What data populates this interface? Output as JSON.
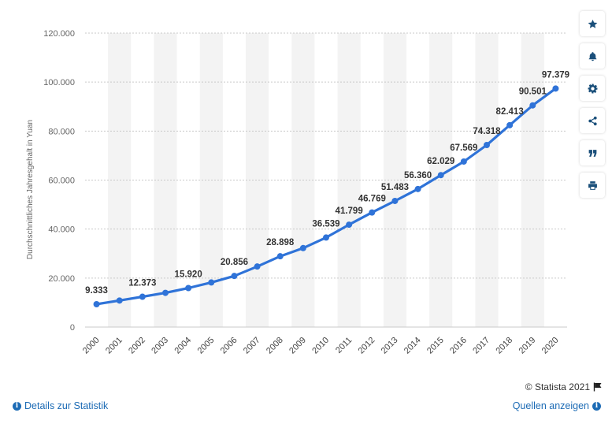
{
  "chart_data": {
    "type": "line",
    "categories": [
      "2000",
      "2001",
      "2002",
      "2003",
      "2004",
      "2005",
      "2006",
      "2007",
      "2008",
      "2009",
      "2010",
      "2011",
      "2012",
      "2013",
      "2014",
      "2015",
      "2016",
      "2017",
      "2018",
      "2019",
      "2020"
    ],
    "values": [
      9333,
      10834,
      12373,
      13969,
      15920,
      18200,
      20856,
      24721,
      28898,
      32244,
      36539,
      41799,
      46769,
      51483,
      56360,
      62029,
      67569,
      74318,
      82413,
      90501,
      97379
    ],
    "data_labels": [
      "9.333",
      "",
      "12.373",
      "",
      "15.920",
      "",
      "20.856",
      "",
      "28.898",
      "",
      "36.539",
      "41.799",
      "46.769",
      "51.483",
      "56.360",
      "62.029",
      "67.569",
      "74.318",
      "82.413",
      "90.501",
      "97.379"
    ],
    "title": "",
    "xlabel": "",
    "ylabel": "Durchschnittliches Jahresgehalt in Yuan",
    "ylim": [
      0,
      120000
    ],
    "yticks": [
      0,
      20000,
      40000,
      60000,
      80000,
      100000,
      120000
    ],
    "ytick_labels": [
      "0",
      "20.000",
      "40.000",
      "60.000",
      "80.000",
      "100.000",
      "120.000"
    ],
    "grid": true,
    "line_color": "#2f73d8",
    "band_color": "#f3f3f3"
  },
  "toolbar": {
    "items": [
      {
        "icon": "star-icon"
      },
      {
        "icon": "bell-icon"
      },
      {
        "icon": "gear-icon"
      },
      {
        "icon": "share-icon"
      },
      {
        "icon": "quote-icon"
      },
      {
        "icon": "print-icon"
      }
    ],
    "icon_color": "#1a4f7a"
  },
  "footer": {
    "copyright": "© Statista 2021",
    "details_link": "Details zur Statistik",
    "sources_link": "Quellen anzeigen",
    "link_color": "#1c6bb5"
  }
}
